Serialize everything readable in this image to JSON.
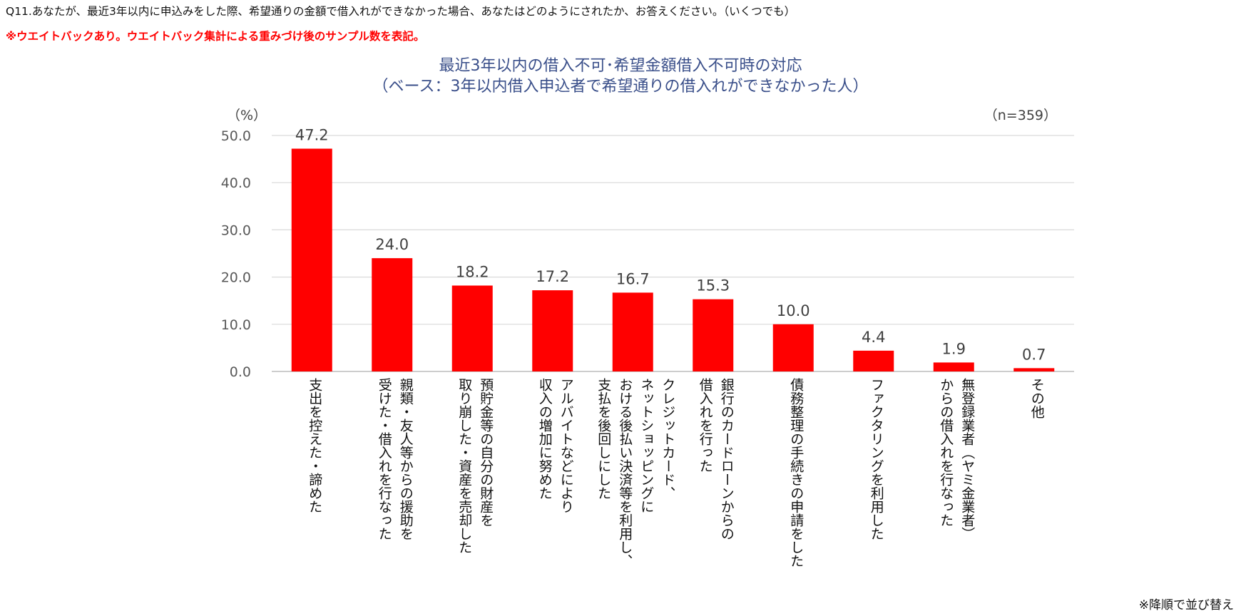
{
  "question": "Q11.あなたが、最近3年以内に申込みをした際、希望通りの金額で借入れができなかった場合、あなたはどのようにされたか、お答えください。（いくつでも）",
  "note_top": "※ウエイトバックあり。ウエイトバック集計による重みづけ後のサンプル数を表記。",
  "note_bottom": "※降順で並び替え",
  "colors": {
    "bar": "#ff0000",
    "note_top": "#ff0000",
    "title": "#3a4f8a",
    "grid": "#d9d9d9",
    "axis_text": "#595959"
  },
  "chart_data": {
    "type": "bar",
    "title": "最近3年以内の借入不可･希望金額借入不可時の対応",
    "subtitle": "（ベース：3年以内借入申込者で希望通りの借入れができなかった人）",
    "ylabel": "（%）",
    "sample_size": "（n=359）",
    "ylim": [
      0,
      50
    ],
    "yticks": [
      "0.0",
      "10.0",
      "20.0",
      "30.0",
      "40.0",
      "50.0"
    ],
    "grid": true,
    "categories": [
      "支出を控えた・諦めた",
      "親類・友人等からの援助を受けた・借入れを行なった",
      "預貯金等の自分の財産を取り崩した・資産を売却した",
      "アルバイトなどにより収入の増加に努めた",
      "クレジットカード、ネットショッピングにおける後払い決済等を利用し、支払を後回しにした",
      "銀行のカードローンからの借入れを行った",
      "債務整理の手続きの申請をした",
      "ファクタリングを利用した",
      "無登録業者（ヤミ金業者）からの借入れを行なった",
      "その他"
    ],
    "category_lines": [
      [
        "支出を控えた・諦めた"
      ],
      [
        "親類・友人等からの援助を",
        "受けた・借入れを行なった"
      ],
      [
        "預貯金等の自分の財産を",
        "取り崩した・資産を売却した"
      ],
      [
        "アルバイトなどにより",
        "収入の増加に努めた"
      ],
      [
        "クレジットカード、",
        "ネットショッピングに",
        "おける後払い決済等を利用し、",
        "支払を後回しにした"
      ],
      [
        "銀行のカードローンからの",
        "借入れを行った"
      ],
      [
        "債務整理の手続きの申請をした"
      ],
      [
        "ファクタリングを利用した"
      ],
      [
        "無登録業者（ヤミ金業者）",
        "からの借入れを行なった"
      ],
      [
        "その他"
      ]
    ],
    "values": [
      47.2,
      24.0,
      18.2,
      17.2,
      16.7,
      15.3,
      10.0,
      4.4,
      1.9,
      0.7
    ],
    "value_labels": [
      "47.2",
      "24.0",
      "18.2",
      "17.2",
      "16.7",
      "15.3",
      "10.0",
      "4.4",
      "1.9",
      "0.7"
    ]
  }
}
